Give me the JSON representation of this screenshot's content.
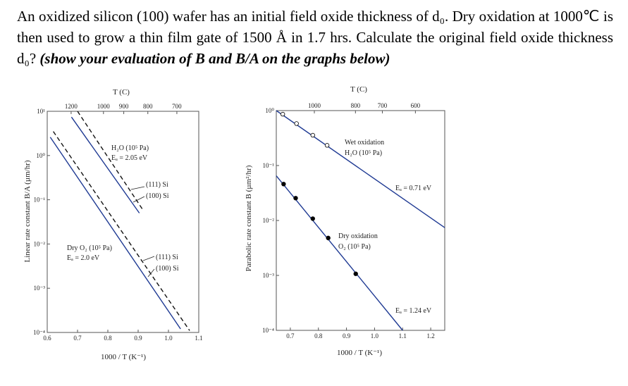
{
  "question": {
    "text": "An oxidized silicon (100) wafer has an initial field oxide thickness of d₀. Dry oxidation at 1000℃ is then used to grow a thin film gate of 1500 Å in 1.7 hrs. Calculate the original field oxide thickness d₀? ",
    "emphasis": "(show your evaluation of B and B/A on the graphs below)"
  },
  "chart_data": [
    {
      "type": "line",
      "title": "",
      "top_axis_label": "T (C)",
      "top_ticks": [
        {
          "label": "1200",
          "T": 1200
        },
        {
          "label": "1000",
          "T": 1000
        },
        {
          "label": "900",
          "T": 900
        },
        {
          "label": "800",
          "T": 800
        },
        {
          "label": "700",
          "T": 700
        }
      ],
      "xlabel": "1000 / T (K⁻¹)",
      "ylabel": "Linear rate constant  B/A  (µm/hr)",
      "xlim": [
        0.6,
        1.1
      ],
      "ylim": [
        0.0001,
        10
      ],
      "yscale": "log",
      "xticks": [
        "0.6",
        "0.7",
        "0.8",
        "0.9",
        "1.0",
        "1.1"
      ],
      "yticks": [
        "10¹",
        "10⁰",
        "10⁻¹",
        "10⁻²",
        "10⁻³",
        "10⁻⁴"
      ],
      "line_color": "#1f3a93",
      "series": [
        {
          "name": "(100) Si",
          "group": "H2O",
          "style": "solid",
          "x": [
            0.68,
            0.904
          ],
          "y": [
            7.4,
            0.05
          ]
        },
        {
          "name": "(111) Si",
          "group": "H2O",
          "style": "dashed",
          "x": [
            0.7,
            0.915
          ],
          "y": [
            10,
            0.06
          ]
        },
        {
          "name": "(100) Si",
          "group": "Dry O2",
          "style": "solid",
          "x": [
            0.61,
            1.04
          ],
          "y": [
            2.6,
            0.00012
          ]
        },
        {
          "name": "(111) Si",
          "group": "Dry O2",
          "style": "dashed",
          "x": [
            0.62,
            1.07
          ],
          "y": [
            3.5,
            0.00011
          ]
        }
      ],
      "annotations": {
        "wet_title": "H₂O (10⁵ Pa)",
        "wet_ea": "Eₐ = 2.05 eV",
        "wet_111": "(111) Si",
        "wet_100": "(100) Si",
        "dry_title": "Dry O₂ (10⁵ Pa)",
        "dry_ea": "Eₐ = 2.0 eV",
        "dry_111": "(111) Si",
        "dry_100": "(100) Si"
      }
    },
    {
      "type": "scatter",
      "title": "",
      "top_axis_label": "T (C)",
      "top_ticks": [
        {
          "label": "1000",
          "T": 1000
        },
        {
          "label": "800",
          "T": 800
        },
        {
          "label": "700",
          "T": 700
        },
        {
          "label": "600",
          "T": 600
        }
      ],
      "xlabel": "1000 / T (K⁻¹)",
      "ylabel": "Parabolic rate constant  B (µm²/hr)",
      "xlim": [
        0.65,
        1.25
      ],
      "ylim": [
        0.0001,
        1
      ],
      "yscale": "log",
      "xticks": [
        "0.7",
        "0.8",
        "0.9",
        "1.0",
        "1.1",
        "1.2"
      ],
      "yticks": [
        "10⁰",
        "10⁻¹",
        "10⁻²",
        "10⁻³",
        "10⁻⁴"
      ],
      "line_color": "#1f3a93",
      "series": [
        {
          "name": "Wet oxidation",
          "fit_x": [
            0.65,
            1.25
          ],
          "fit_y": [
            1.0,
            0.0074
          ],
          "marker": "open",
          "x": [
            0.673,
            0.722,
            0.78,
            0.831
          ],
          "y": [
            0.86,
            0.58,
            0.356,
            0.233
          ]
        },
        {
          "name": "Dry oxidation",
          "fit_x": [
            0.65,
            1.1
          ],
          "fit_y": [
            0.065,
            0.0001
          ],
          "marker": "filled",
          "x": [
            0.676,
            0.719,
            0.78,
            0.835,
            0.933
          ],
          "y": [
            0.046,
            0.0255,
            0.0108,
            0.0048,
            0.00107
          ]
        }
      ],
      "annotations": {
        "wet_title": "Wet oxidation",
        "wet_sub": "H₂O  (10⁵  Pa)",
        "wet_ea": "Eₐ = 0.71 eV",
        "dry_title": "Dry oxidation",
        "dry_sub": "O₂  (10⁵  Pa)",
        "dry_ea": "Eₐ = 1.24 eV"
      }
    }
  ]
}
